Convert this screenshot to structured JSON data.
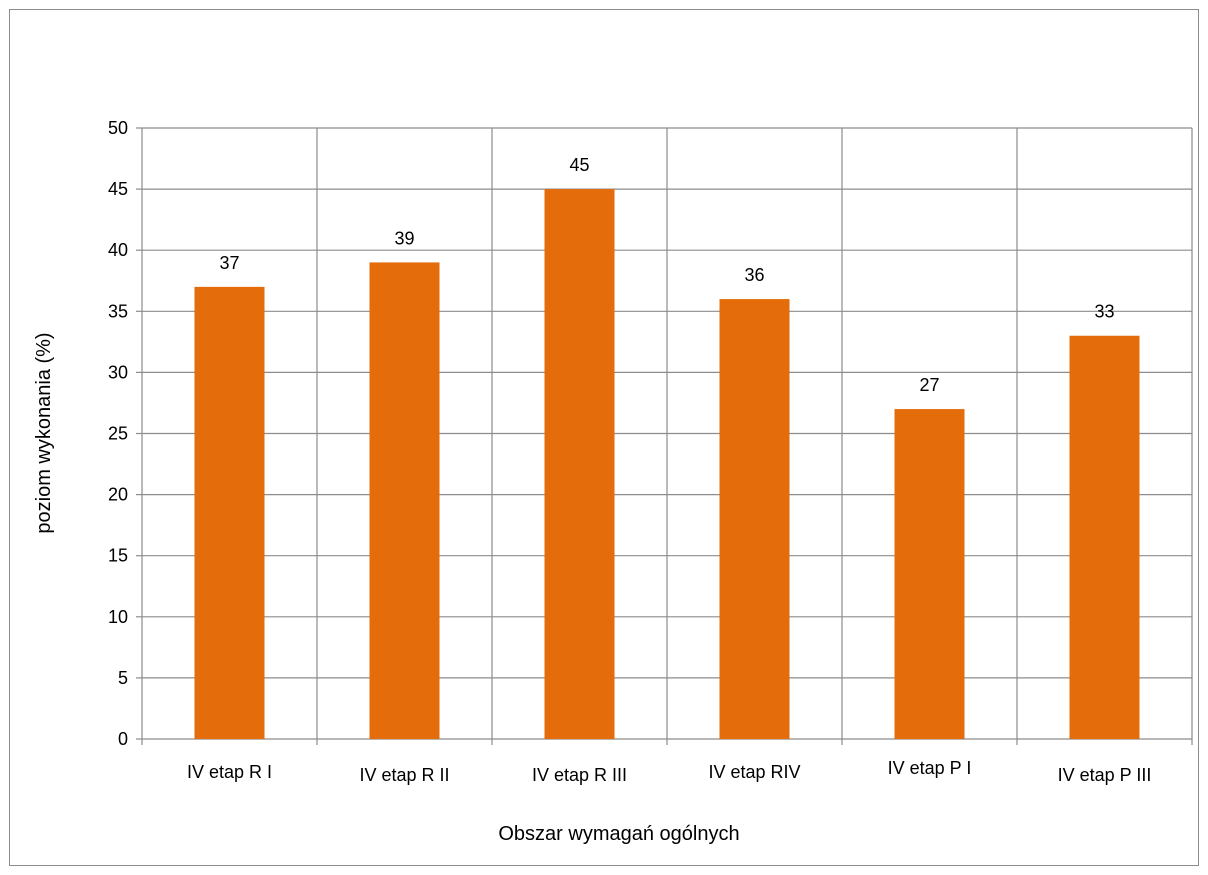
{
  "chart_data": {
    "type": "bar",
    "categories": [
      "IV etap R I",
      "IV etap R II",
      "IV etap R III",
      "IV etap RIV",
      "IV etap P I",
      "IV etap P III"
    ],
    "values": [
      37,
      39,
      45,
      36,
      27,
      33
    ],
    "title": "",
    "xlabel": "Obszar wymagań ogólnych",
    "ylabel": "poziom wykonania (%)",
    "ylim": [
      0,
      50
    ],
    "yticks": [
      0,
      5,
      10,
      15,
      20,
      25,
      30,
      35,
      40,
      45,
      50
    ],
    "grid": true,
    "legend": "none",
    "bar_color": "#e46c0a",
    "grid_color": "#8c8c8c"
  }
}
